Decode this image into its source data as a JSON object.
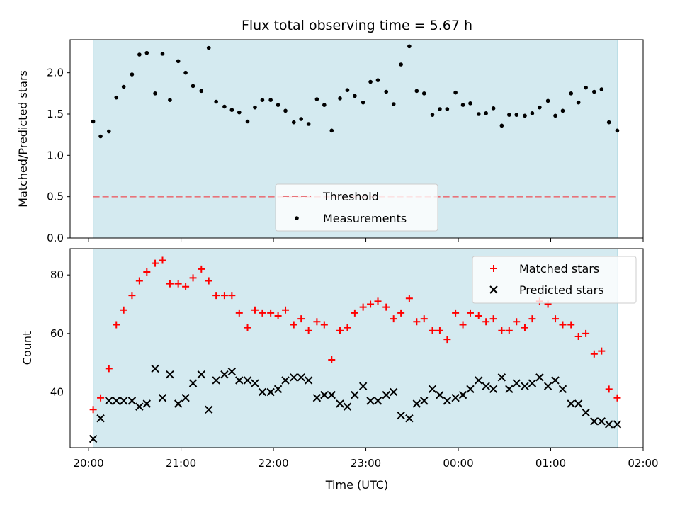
{
  "chart_data": {
    "title": "Flux total observing time = 5.67 h",
    "xlabel": "Time (UTC)",
    "x_ticks": [
      "20:00",
      "21:00",
      "22:00",
      "23:00",
      "00:00",
      "01:00",
      "02:00"
    ],
    "x_range_hours": [
      19.8,
      26.0
    ],
    "observing_window_hours": [
      20.05,
      25.72
    ],
    "shade_color": "#d4eaf0",
    "panels": [
      {
        "type": "scatter",
        "ylabel": "Matched/Predicted stars",
        "ylim": [
          0,
          2.4
        ],
        "y_ticks": [
          "0.0",
          "0.5",
          "1.0",
          "1.5",
          "2.0"
        ],
        "threshold": {
          "name": "Threshold",
          "value": 0.5,
          "color": "#e8737a"
        },
        "legend": {
          "placement": "lower center",
          "entries": [
            "Threshold",
            "Measurements"
          ]
        },
        "series": [
          {
            "name": "Measurements",
            "marker": "dot",
            "color": "#000000",
            "x": [
              20.05,
              20.13,
              20.22,
              20.3,
              20.38,
              20.47,
              20.55,
              20.63,
              20.72,
              20.8,
              20.88,
              20.97,
              21.05,
              21.13,
              21.22,
              21.3,
              21.38,
              21.47,
              21.55,
              21.63,
              21.72,
              21.8,
              21.88,
              21.97,
              22.05,
              22.13,
              22.22,
              22.3,
              22.38,
              22.47,
              22.55,
              22.63,
              22.72,
              22.8,
              22.88,
              22.97,
              23.05,
              23.13,
              23.22,
              23.3,
              23.38,
              23.47,
              23.55,
              23.63,
              23.72,
              23.8,
              23.88,
              23.97,
              24.05,
              24.13,
              24.22,
              24.3,
              24.38,
              24.47,
              24.55,
              24.63,
              24.72,
              24.8,
              24.88,
              24.97,
              25.05,
              25.13,
              25.22,
              25.3,
              25.38,
              25.47,
              25.55,
              25.63,
              25.72
            ],
            "y": [
              1.41,
              1.23,
              1.29,
              1.7,
              1.83,
              1.98,
              2.22,
              2.24,
              1.75,
              2.23,
              1.67,
              2.14,
              2.0,
              1.84,
              1.78,
              2.3,
              1.65,
              1.59,
              1.55,
              1.52,
              1.41,
              1.58,
              1.67,
              1.67,
              1.61,
              1.54,
              1.4,
              1.44,
              1.38,
              1.68,
              1.61,
              1.3,
              1.69,
              1.79,
              1.72,
              1.64,
              1.89,
              1.91,
              1.77,
              1.62,
              2.1,
              2.32,
              1.78,
              1.75,
              1.49,
              1.56,
              1.56,
              1.76,
              1.61,
              1.63,
              1.5,
              1.51,
              1.57,
              1.36,
              1.49,
              1.49,
              1.48,
              1.51,
              1.58,
              1.66,
              1.48,
              1.54,
              1.75,
              1.64,
              1.82,
              1.77,
              1.8,
              1.4,
              1.3
            ]
          }
        ]
      },
      {
        "type": "scatter",
        "ylabel": "Count",
        "ylim": [
          21,
          89
        ],
        "y_ticks": [
          "40",
          "60",
          "80"
        ],
        "legend": {
          "placement": "upper right",
          "entries": [
            "Matched stars",
            "Predicted stars"
          ]
        },
        "series": [
          {
            "name": "Matched stars",
            "marker": "plus",
            "color": "#ff0000",
            "x": [
              20.05,
              20.13,
              20.22,
              20.3,
              20.38,
              20.47,
              20.55,
              20.63,
              20.72,
              20.8,
              20.88,
              20.97,
              21.05,
              21.13,
              21.22,
              21.3,
              21.38,
              21.47,
              21.55,
              21.63,
              21.72,
              21.8,
              21.88,
              21.97,
              22.05,
              22.13,
              22.22,
              22.3,
              22.38,
              22.47,
              22.55,
              22.63,
              22.72,
              22.8,
              22.88,
              22.97,
              23.05,
              23.13,
              23.22,
              23.3,
              23.38,
              23.47,
              23.55,
              23.63,
              23.72,
              23.8,
              23.88,
              23.97,
              24.05,
              24.13,
              24.22,
              24.3,
              24.38,
              24.47,
              24.55,
              24.63,
              24.72,
              24.8,
              24.88,
              24.97,
              25.05,
              25.13,
              25.22,
              25.3,
              25.38,
              25.47,
              25.55,
              25.63,
              25.72
            ],
            "y": [
              34,
              38,
              48,
              63,
              68,
              73,
              78,
              81,
              84,
              85,
              77,
              77,
              76,
              79,
              82,
              78,
              73,
              73,
              73,
              67,
              62,
              68,
              67,
              67,
              66,
              68,
              63,
              65,
              61,
              64,
              63,
              51,
              61,
              62,
              67,
              69,
              70,
              71,
              69,
              65,
              67,
              72,
              64,
              65,
              61,
              61,
              58,
              67,
              63,
              67,
              66,
              64,
              65,
              61,
              61,
              64,
              62,
              65,
              71,
              70,
              65,
              63,
              63,
              59,
              60,
              53,
              54,
              41,
              38
            ]
          },
          {
            "name": "Predicted stars",
            "marker": "x",
            "color": "#000000",
            "x": [
              20.05,
              20.13,
              20.22,
              20.3,
              20.38,
              20.47,
              20.55,
              20.63,
              20.72,
              20.8,
              20.88,
              20.97,
              21.05,
              21.13,
              21.22,
              21.3,
              21.38,
              21.47,
              21.55,
              21.63,
              21.72,
              21.8,
              21.88,
              21.97,
              22.05,
              22.13,
              22.22,
              22.3,
              22.38,
              22.47,
              22.55,
              22.63,
              22.72,
              22.8,
              22.88,
              22.97,
              23.05,
              23.13,
              23.22,
              23.3,
              23.38,
              23.47,
              23.55,
              23.63,
              23.72,
              23.8,
              23.88,
              23.97,
              24.05,
              24.13,
              24.22,
              24.3,
              24.38,
              24.47,
              24.55,
              24.63,
              24.72,
              24.8,
              24.88,
              24.97,
              25.05,
              25.13,
              25.22,
              25.3,
              25.38,
              25.47,
              25.55,
              25.63,
              25.72
            ],
            "y": [
              24,
              31,
              37,
              37,
              37,
              37,
              35,
              36,
              48,
              38,
              46,
              36,
              38,
              43,
              46,
              34,
              44,
              46,
              47,
              44,
              44,
              43,
              40,
              40,
              41,
              44,
              45,
              45,
              44,
              38,
              39,
              39,
              36,
              35,
              39,
              42,
              37,
              37,
              39,
              40,
              32,
              31,
              36,
              37,
              41,
              39,
              37,
              38,
              39,
              41,
              44,
              42,
              41,
              45,
              41,
              43,
              42,
              43,
              45,
              42,
              44,
              41,
              36,
              36,
              33,
              30,
              30,
              29,
              29
            ]
          }
        ]
      }
    ]
  }
}
